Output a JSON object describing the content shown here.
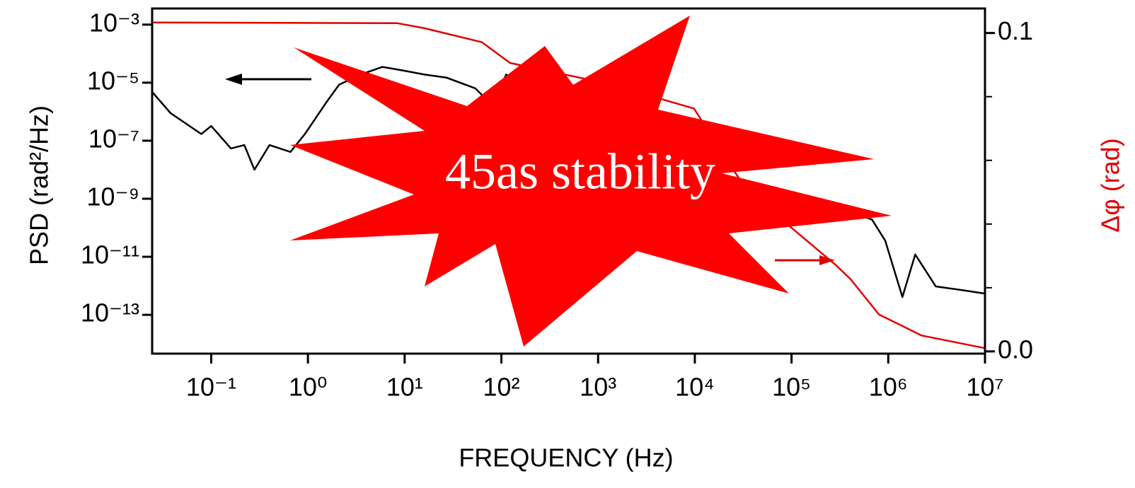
{
  "chart_data": {
    "type": "line",
    "xlabel": "FREQUENCY (Hz)",
    "ylabel": "PSD (rad²/Hz)",
    "y2label": "Δφ (rad)",
    "annotation": "45as stability",
    "xscale": "log",
    "yscale": "log",
    "xlim": [
      0.0245,
      10000000
    ],
    "ylim": [
      4.6e-15,
      0.0036
    ],
    "y2lim": [
      -0.0007,
      0.1077
    ],
    "xticks": [
      {
        "value": 0.1,
        "label": "10⁻¹"
      },
      {
        "value": 1,
        "label": "10⁰"
      },
      {
        "value": 10,
        "label": "10¹"
      },
      {
        "value": 100,
        "label": "10²"
      },
      {
        "value": 1000,
        "label": "10³"
      },
      {
        "value": 10000,
        "label": "10⁴"
      },
      {
        "value": 100000,
        "label": "10⁵"
      },
      {
        "value": 1000000,
        "label": "10⁶"
      },
      {
        "value": 10000000,
        "label": "10⁷"
      }
    ],
    "yticks": [
      {
        "value": 0.001,
        "label": "10⁻³"
      },
      {
        "value": 1e-05,
        "label": "10⁻⁵"
      },
      {
        "value": 1e-07,
        "label": "10⁻⁷"
      },
      {
        "value": 1e-09,
        "label": "10⁻⁹"
      },
      {
        "value": 1e-11,
        "label": "10⁻¹¹"
      },
      {
        "value": 1e-13,
        "label": "10⁻¹³"
      }
    ],
    "y2ticks": [
      {
        "value": 0,
        "label": "0.0"
      },
      {
        "value": 0.1,
        "label": "0.1"
      }
    ],
    "y2minor": [
      0.02,
      0.04,
      0.06,
      0.08
    ],
    "series": [
      {
        "color": "#000000",
        "x": [
          0.0245,
          0.038,
          0.079,
          0.1,
          0.16,
          0.22,
          0.28,
          0.4,
          0.66,
          0.93,
          1.55,
          2.1,
          3.5,
          5.9,
          9.8,
          16,
          27,
          54,
          81,
          112,
          1000,
          10000,
          100000,
          210000,
          410000,
          680000,
          930000,
          1400000,
          1900000,
          3100000,
          6000000,
          10000000
        ],
        "values": [
          4.8e-06,
          8.9e-07,
          1.7e-07,
          3.2e-07,
          5.4e-08,
          7.1e-08,
          1e-08,
          7.1e-08,
          4.1e-08,
          1.7e-07,
          2.1e-06,
          8.5e-06,
          1.9e-05,
          3.5e-05,
          2.6e-05,
          1.9e-05,
          1.5e-05,
          6.3e-06,
          1.6e-06,
          1.9e-05,
          3e-07,
          1e-08,
          6e-10,
          2.6e-10,
          3.5e-10,
          1.9e-10,
          3.6e-11,
          4.1e-13,
          1.2e-11,
          9.5e-13,
          7e-13,
          5.4e-13
        ]
      },
      {
        "color": "#e00000",
        "axis": "y2",
        "x": [
          0.0245,
          8.3,
          16,
          63,
          123,
          400,
          1300,
          9800,
          27000,
          38000,
          89000,
          290000,
          410000,
          800000,
          2200000,
          10000000
        ],
        "values": [
          0.1033,
          0.1031,
          0.1015,
          0.0971,
          0.0906,
          0.0873,
          0.084,
          0.0763,
          0.0555,
          0.0489,
          0.0401,
          0.027,
          0.0226,
          0.0116,
          0.005,
          0.001
        ]
      }
    ]
  }
}
